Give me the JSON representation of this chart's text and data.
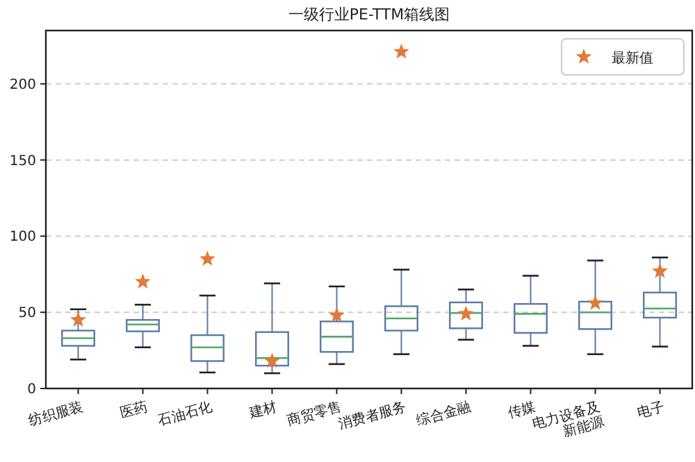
{
  "chart_data": {
    "type": "box",
    "title": "一级行业PE-TTM箱线图",
    "categories": [
      "纺织服装",
      "医药",
      "石油石化",
      "建材",
      "商贸零售",
      "消费者服务",
      "综合金融",
      "传媒",
      "电力设备及新能源",
      "电子"
    ],
    "boxes": [
      {
        "low": 19,
        "q1": 28,
        "median": 33,
        "q3": 38,
        "high": 52
      },
      {
        "low": 27,
        "q1": 37.5,
        "median": 42,
        "q3": 45,
        "high": 55
      },
      {
        "low": 10.5,
        "q1": 18,
        "median": 27,
        "q3": 35,
        "high": 61
      },
      {
        "low": 10,
        "q1": 15,
        "median": 20,
        "q3": 37,
        "high": 69
      },
      {
        "low": 16,
        "q1": 24,
        "median": 34,
        "q3": 44,
        "high": 67
      },
      {
        "low": 22.5,
        "q1": 38,
        "median": 46,
        "q3": 54,
        "high": 78
      },
      {
        "low": 32,
        "q1": 39.5,
        "median": 49.5,
        "q3": 56.5,
        "high": 65
      },
      {
        "low": 28,
        "q1": 36.5,
        "median": 49,
        "q3": 55.5,
        "high": 74
      },
      {
        "low": 22.5,
        "q1": 39,
        "median": 50,
        "q3": 57,
        "high": 84
      },
      {
        "low": 27.5,
        "q1": 46.5,
        "median": 52.5,
        "q3": 63,
        "high": 86
      }
    ],
    "series": [
      {
        "name": "最新值",
        "type": "scatter",
        "marker": "star",
        "color": "#e07b39",
        "x": [
          "纺织服装",
          "医药",
          "石油石化",
          "建材",
          "商贸零售",
          "消费者服务",
          "综合金融",
          "电力设备及新能源",
          "电子"
        ],
        "values": [
          45,
          70,
          85,
          18,
          48,
          221,
          49,
          56,
          77
        ]
      }
    ],
    "ylim": [
      0,
      235
    ],
    "yticks": [
      0,
      50,
      100,
      150,
      200
    ],
    "grid": "y",
    "legend": "top right"
  }
}
